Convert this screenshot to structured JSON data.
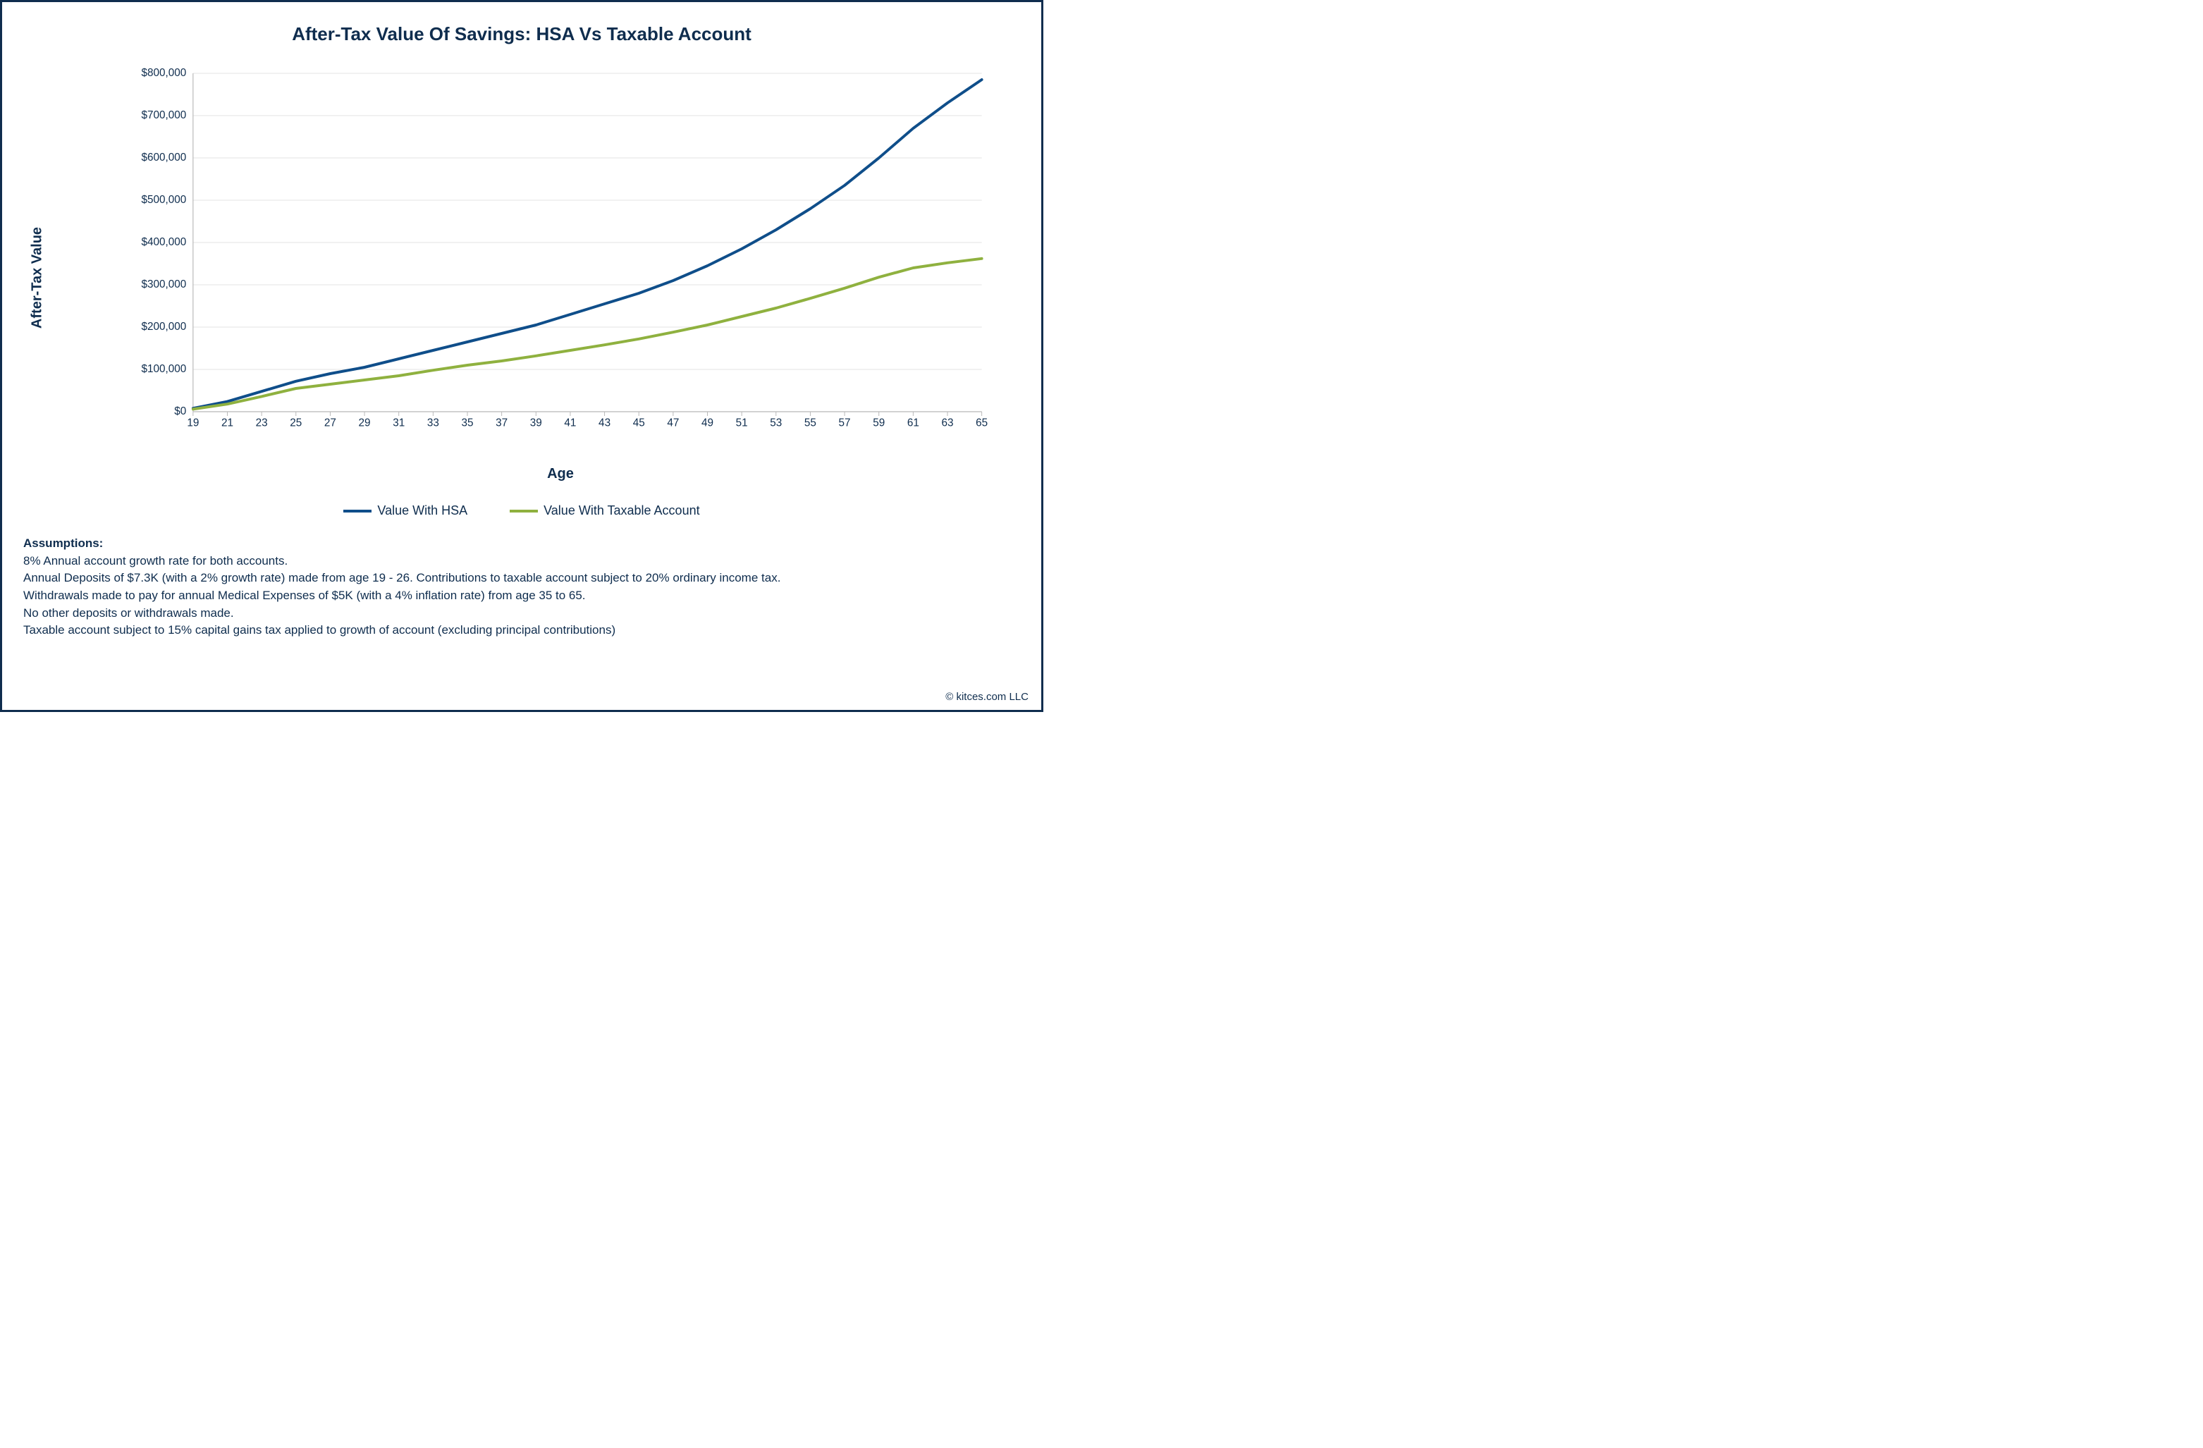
{
  "chart": {
    "type": "line",
    "title": "After-Tax Value Of Savings: HSA Vs Taxable Account",
    "title_fontsize": 26,
    "title_color": "#0f2d4e",
    "frame_border_color": "#0f2d4e",
    "background_color": "#ffffff",
    "x_axis": {
      "title": "Age",
      "title_fontsize": 20,
      "ticks": [
        19,
        21,
        23,
        25,
        27,
        29,
        31,
        33,
        35,
        37,
        39,
        41,
        43,
        45,
        47,
        49,
        51,
        53,
        55,
        57,
        59,
        61,
        63,
        65
      ],
      "tick_fontsize": 16,
      "xlim": [
        19,
        65
      ],
      "axis_color": "#b7b7b7"
    },
    "y_axis": {
      "title": "After-Tax Value",
      "title_fontsize": 20,
      "ticks": [
        0,
        100000,
        200000,
        300000,
        400000,
        500000,
        600000,
        700000,
        800000
      ],
      "tick_labels": [
        "$0",
        "$100,000",
        "$200,000",
        "$300,000",
        "$400,000",
        "$500,000",
        "$600,000",
        "$700,000",
        "$800,000"
      ],
      "tick_fontsize": 16,
      "ylim": [
        0,
        800000
      ],
      "grid_color": "#e3e3e3",
      "axis_color": "#b7b7b7"
    },
    "series": [
      {
        "name": "Value With HSA",
        "color": "#0f4e8a",
        "line_width": 4,
        "x": [
          19,
          21,
          23,
          25,
          27,
          29,
          31,
          33,
          35,
          37,
          39,
          41,
          43,
          45,
          47,
          49,
          51,
          53,
          55,
          57,
          59,
          61,
          63,
          65
        ],
        "y": [
          8000,
          24000,
          48000,
          72000,
          90000,
          105000,
          125000,
          145000,
          165000,
          185000,
          205000,
          230000,
          255000,
          280000,
          310000,
          345000,
          385000,
          430000,
          480000,
          535000,
          600000,
          670000,
          730000,
          785000
        ]
      },
      {
        "name": "Value With Taxable Account",
        "color": "#8fb13f",
        "line_width": 4,
        "x": [
          19,
          21,
          23,
          25,
          27,
          29,
          31,
          33,
          35,
          37,
          39,
          41,
          43,
          45,
          47,
          49,
          51,
          53,
          55,
          57,
          59,
          61,
          63,
          65
        ],
        "y": [
          6000,
          18000,
          36000,
          55000,
          65000,
          75000,
          85000,
          98000,
          110000,
          120000,
          132000,
          145000,
          158000,
          172000,
          188000,
          205000,
          225000,
          245000,
          268000,
          292000,
          318000,
          340000,
          352000,
          362000
        ]
      }
    ]
  },
  "legend": {
    "items": [
      {
        "label": "Value With HSA",
        "color": "#0f4e8a"
      },
      {
        "label": "Value With Taxable Account",
        "color": "#8fb13f"
      }
    ],
    "fontsize": 18,
    "color": "#0f2d4e"
  },
  "assumptions": {
    "heading": "Assumptions:",
    "lines": [
      "8% Annual account growth rate for both accounts.",
      "Annual Deposits of $7.3K (with a 2% growth rate) made from age 19 - 26. Contributions to taxable account subject to 20% ordinary income tax.",
      "Withdrawals made to pay for annual Medical Expenses of $5K (with a 4% inflation rate) from age 35 to 65.",
      "No other deposits or withdrawals made.",
      "Taxable account subject to 15% capital gains tax applied to growth of account (excluding principal contributions)"
    ],
    "fontsize": 17,
    "color": "#0f2d4e"
  },
  "copyright": "© kitces.com LLC"
}
